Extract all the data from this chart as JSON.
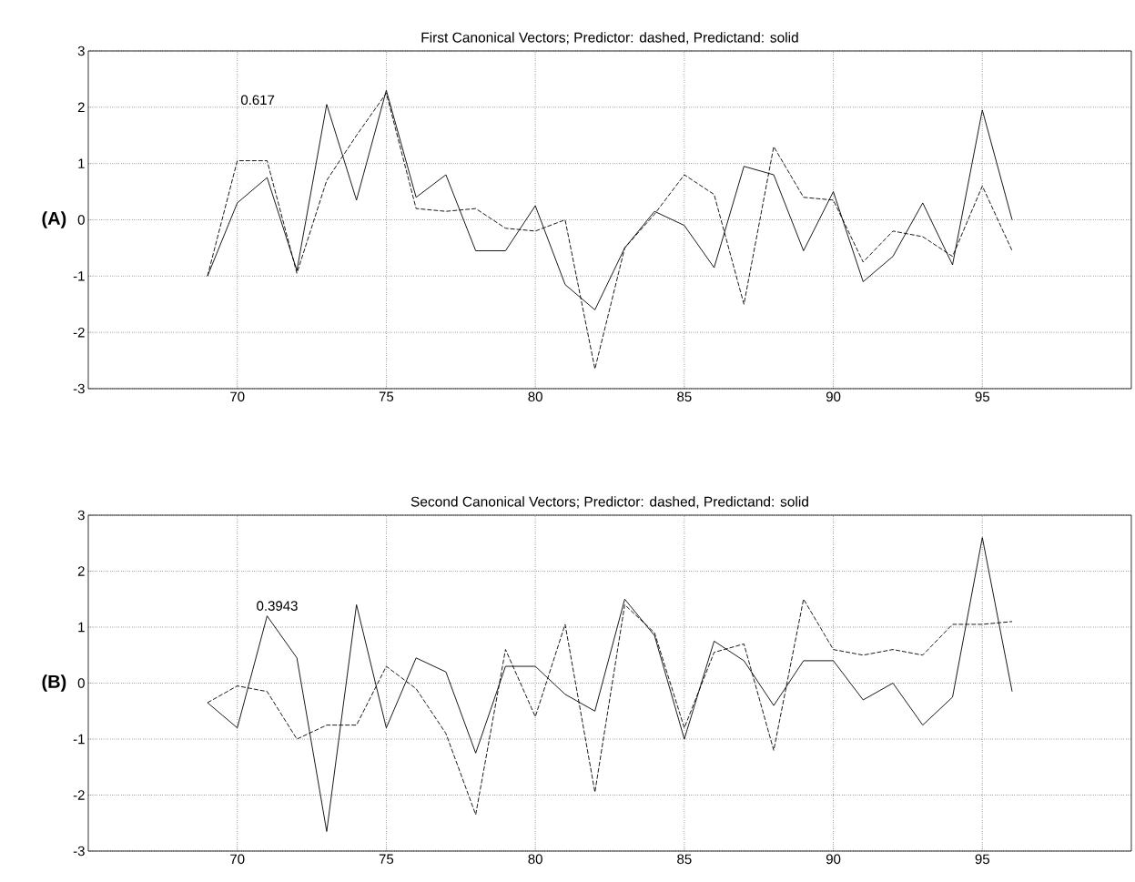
{
  "chart_data": [
    {
      "type": "line",
      "title": "First Canonical Vectors; Predictor: dashed, Predictand: solid",
      "ylabel": "(A)",
      "x": [
        69,
        70,
        71,
        72,
        73,
        74,
        75,
        76,
        77,
        78,
        79,
        80,
        81,
        82,
        83,
        84,
        85,
        86,
        87,
        88,
        89,
        90,
        91,
        92,
        93,
        94,
        95,
        96
      ],
      "series": [
        {
          "color": "#000000",
          "line_style": "solid",
          "values": [
            -1.0,
            0.3,
            0.75,
            -0.9,
            2.05,
            0.35,
            2.3,
            0.4,
            0.8,
            -0.55,
            -0.55,
            0.25,
            -1.15,
            -1.6,
            -0.5,
            0.15,
            -0.1,
            -0.85,
            0.95,
            0.8,
            -0.55,
            0.5,
            -1.1,
            -0.65,
            0.3,
            -0.8,
            1.95,
            0.0
          ]
        },
        {
          "color": "#000000",
          "line_style": "dashed",
          "values": [
            -1.0,
            1.05,
            1.05,
            -0.95,
            0.7,
            1.5,
            2.25,
            0.2,
            0.15,
            0.2,
            -0.15,
            -0.2,
            0.0,
            -2.65,
            -0.5,
            0.1,
            0.8,
            0.45,
            -1.5,
            1.3,
            0.4,
            0.35,
            -0.75,
            -0.2,
            -0.3,
            -0.65,
            0.6,
            -0.55
          ]
        }
      ],
      "annotations": [
        "0.617"
      ],
      "xlim": [
        65,
        100
      ],
      "xticks": [
        70,
        75,
        80,
        85,
        90,
        95
      ],
      "ylim": [
        -3,
        3
      ],
      "yticks": [
        -3,
        -2,
        -1,
        0,
        1,
        2,
        3
      ],
      "grid": true,
      "marker": "none"
    },
    {
      "type": "line",
      "title": "Second Canonical Vectors; Predictor: dashed, Predictand: solid",
      "ylabel": "(B)",
      "x": [
        69,
        70,
        71,
        72,
        73,
        74,
        75,
        76,
        77,
        78,
        79,
        80,
        81,
        82,
        83,
        84,
        85,
        86,
        87,
        88,
        89,
        90,
        91,
        92,
        93,
        94,
        95,
        96
      ],
      "series": [
        {
          "color": "#000000",
          "line_style": "solid",
          "values": [
            -0.35,
            -0.8,
            1.2,
            0.45,
            -2.65,
            1.4,
            -0.8,
            0.45,
            0.2,
            -1.25,
            0.3,
            0.3,
            -0.2,
            -0.5,
            1.5,
            0.85,
            -1.0,
            0.75,
            0.4,
            -0.4,
            0.4,
            0.4,
            -0.3,
            0.0,
            -0.75,
            -0.25,
            2.6,
            -0.15
          ]
        },
        {
          "color": "#000000",
          "line_style": "dashed",
          "values": [
            -0.35,
            -0.05,
            -0.15,
            -1.0,
            -0.75,
            -0.75,
            0.3,
            -0.1,
            -0.9,
            -2.35,
            0.6,
            -0.6,
            1.05,
            -1.95,
            1.4,
            0.9,
            -0.8,
            0.55,
            0.7,
            -1.2,
            1.5,
            0.6,
            0.5,
            0.6,
            0.5,
            1.05,
            1.05,
            1.1
          ]
        }
      ],
      "annotations": [
        "0.3943"
      ],
      "xlim": [
        65,
        100
      ],
      "xticks": [
        70,
        75,
        80,
        85,
        90,
        95
      ],
      "ylim": [
        -3,
        3
      ],
      "yticks": [
        -3,
        -2,
        -1,
        0,
        1,
        2,
        3
      ],
      "grid": true,
      "marker": "none"
    }
  ]
}
